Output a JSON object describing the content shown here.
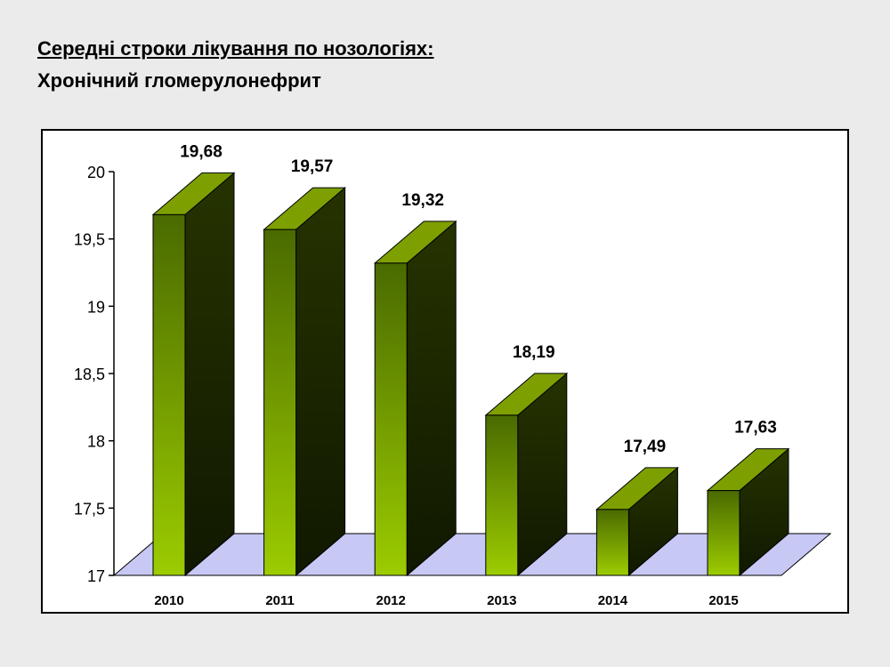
{
  "header": {
    "title": "Середні строки лікування по нозологіях:",
    "subtitle": "Хронічний гломерулонефрит"
  },
  "chart_data": {
    "type": "bar",
    "style": "3d",
    "categories": [
      "2010",
      "2011",
      "2012",
      "2013",
      "2014",
      "2015"
    ],
    "values": [
      19.68,
      19.57,
      19.32,
      18.19,
      17.49,
      17.63
    ],
    "value_labels": [
      "19,68",
      "19,57",
      "19,32",
      "18,19",
      "17,49",
      "17,63"
    ],
    "ylim": [
      17,
      20
    ],
    "yticks": [
      17,
      17.5,
      18,
      18.5,
      19,
      19.5,
      20
    ],
    "ytick_labels": [
      "17",
      "17,5",
      "18",
      "18,5",
      "19",
      "19,5",
      "20"
    ],
    "grid": false,
    "legend": "none",
    "colors": {
      "bar_front_top": "#4a6a00",
      "bar_front_bottom": "#9ccc00",
      "bar_top": "#7da000",
      "bar_side": "#1b2600",
      "floor": "#c8c8f5"
    }
  }
}
